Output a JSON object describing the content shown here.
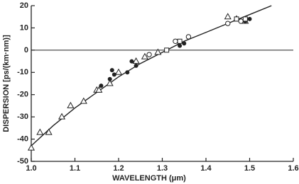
{
  "chart_data": {
    "type": "scatter",
    "xlabel": "WAVELENGTH (μm)",
    "ylabel": "DISPERSION [ps/(km·nm)]",
    "xlim": [
      1.0,
      1.6
    ],
    "ylim": [
      -50,
      20
    ],
    "xticks": [
      {
        "value": 1.0,
        "label": "1.0"
      },
      1.1,
      1.2,
      1.3,
      1.4,
      1.5,
      1.6
    ],
    "yticks": [
      20,
      10,
      0,
      -10,
      -20,
      -30,
      -40,
      -50
    ],
    "series": [
      {
        "marker": "line",
        "color": "#222",
        "x": [
          1.0,
          1.05,
          1.1,
          1.15,
          1.2,
          1.25,
          1.3,
          1.35,
          1.4,
          1.45,
          1.5,
          1.55
        ],
        "values": [
          -43,
          -34,
          -26,
          -19,
          -12,
          -6,
          -1,
          4,
          8,
          12,
          16,
          20
        ]
      },
      {
        "marker": "triangle-open",
        "color": "#222",
        "x": [
          1.0,
          1.02,
          1.04,
          1.07,
          1.09,
          1.12,
          1.15,
          1.155,
          1.18,
          1.2,
          1.24,
          1.26,
          1.29,
          1.45,
          1.47,
          1.49
        ],
        "values": [
          -44,
          -37,
          -37,
          -30,
          -25,
          -23,
          -18,
          -18,
          -15,
          -10,
          -5,
          -3,
          -1,
          15,
          14,
          13
        ]
      },
      {
        "marker": "circle-filled",
        "color": "#222",
        "x": [
          1.16,
          1.18,
          1.185,
          1.19,
          1.22,
          1.23,
          1.24,
          1.34,
          1.35,
          1.47,
          1.49,
          1.5
        ],
        "values": [
          -16,
          -13,
          -9,
          -11,
          -10,
          -5,
          -7,
          2,
          3,
          14,
          13,
          14
        ]
      },
      {
        "marker": "circle-open",
        "color": "#222",
        "x": [
          1.27,
          1.33,
          1.36,
          1.45,
          1.48
        ],
        "values": [
          -2,
          4,
          6,
          12,
          13
        ]
      },
      {
        "marker": "square-open",
        "color": "#222",
        "x": [
          1.31,
          1.34,
          1.47,
          1.49
        ],
        "values": [
          0,
          4,
          14,
          14
        ]
      }
    ]
  }
}
